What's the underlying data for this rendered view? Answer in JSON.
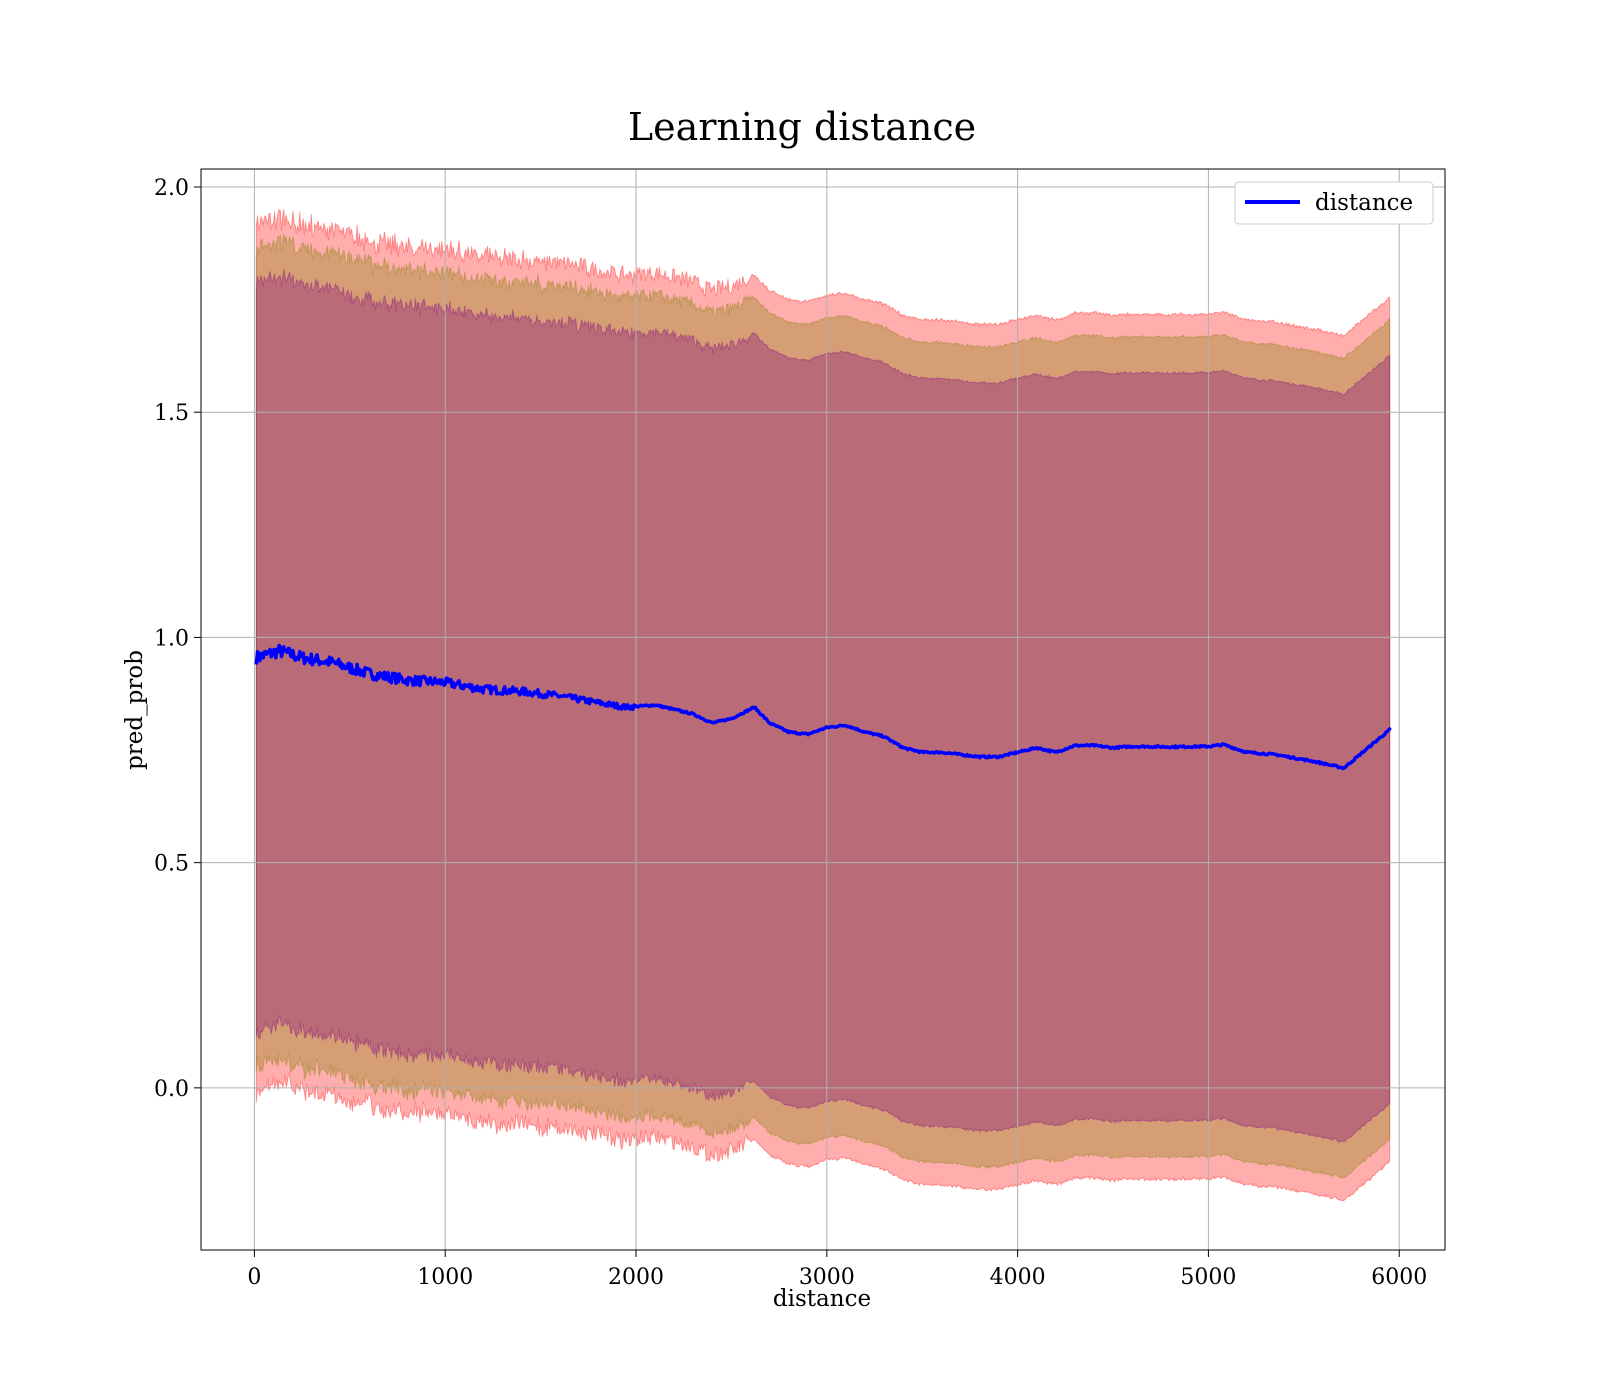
{
  "chart_data": {
    "type": "line",
    "title": "Learning distance",
    "xlabel": "distance",
    "ylabel": "pred_prob",
    "xlim": [
      -280,
      6240
    ],
    "ylim": [
      -0.36,
      2.04
    ],
    "xticks": [
      0,
      1000,
      2000,
      3000,
      4000,
      5000,
      6000
    ],
    "yticks": [
      0.0,
      0.5,
      1.0,
      1.5,
      2.0
    ],
    "ytick_labels": [
      "0.0",
      "0.5",
      "1.0",
      "1.5",
      "2.0"
    ],
    "grid": true,
    "legend": {
      "position": "top-right",
      "entries": [
        "distance"
      ]
    },
    "colors": {
      "line": "#0000ff",
      "band_outer": "#ff0000",
      "band_middle": "#808000",
      "band_inner": "#800080"
    },
    "series": [
      {
        "name": "distance",
        "x": [
          10,
          130,
          250,
          400,
          600,
          800,
          1000,
          1200,
          1400,
          1600,
          1800,
          1950,
          2100,
          2300,
          2400,
          2500,
          2620,
          2700,
          2800,
          2900,
          3000,
          3100,
          3200,
          3300,
          3400,
          3500,
          3600,
          3700,
          3800,
          3900,
          4000,
          4100,
          4200,
          4300,
          4400,
          4500,
          4600,
          4800,
          5000,
          5080,
          5200,
          5350,
          5550,
          5710,
          5950
        ],
        "y": [
          0.955,
          0.97,
          0.955,
          0.945,
          0.92,
          0.905,
          0.9,
          0.885,
          0.88,
          0.87,
          0.855,
          0.845,
          0.85,
          0.83,
          0.81,
          0.82,
          0.845,
          0.81,
          0.79,
          0.785,
          0.8,
          0.805,
          0.79,
          0.78,
          0.755,
          0.745,
          0.745,
          0.74,
          0.735,
          0.735,
          0.745,
          0.755,
          0.745,
          0.76,
          0.76,
          0.755,
          0.758,
          0.757,
          0.758,
          0.762,
          0.745,
          0.74,
          0.725,
          0.71,
          0.795
        ]
      }
    ],
    "bands": [
      {
        "offset": 0.96,
        "opacity": 0.32,
        "jitter": 0.018
      },
      {
        "offset": 0.91,
        "opacity": 0.32,
        "jitter": 0.014
      },
      {
        "offset": 0.83,
        "opacity": 0.32,
        "jitter": 0.012
      }
    ]
  }
}
